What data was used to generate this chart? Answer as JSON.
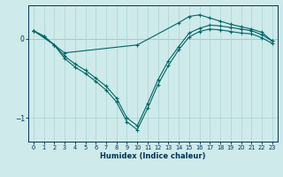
{
  "xlabel": "Humidex (Indice chaleur)",
  "x_main": [
    0,
    1,
    2,
    3,
    4,
    5,
    6,
    7,
    8,
    9,
    10,
    11,
    12,
    13,
    14,
    15,
    16,
    17,
    18,
    19,
    20,
    21,
    22,
    23
  ],
  "line1": [
    0.1,
    0.03,
    -0.08,
    -0.22,
    -0.32,
    -0.4,
    -0.5,
    -0.6,
    -0.75,
    -1.0,
    -1.1,
    -0.82,
    -0.52,
    -0.28,
    -0.1,
    0.07,
    0.13,
    0.17,
    0.16,
    0.14,
    0.12,
    0.1,
    0.05,
    -0.03
  ],
  "line2": [
    0.1,
    0.03,
    -0.08,
    -0.25,
    -0.36,
    -0.44,
    -0.54,
    -0.65,
    -0.8,
    -1.05,
    -1.15,
    -0.88,
    -0.58,
    -0.34,
    -0.14,
    0.02,
    0.09,
    0.12,
    0.11,
    0.09,
    0.07,
    0.06,
    0.01,
    -0.06
  ],
  "line3_x": [
    0,
    2,
    3,
    10,
    14,
    15,
    16,
    17,
    18,
    19,
    20,
    21,
    22,
    23
  ],
  "line3": [
    0.1,
    -0.08,
    -0.18,
    -0.08,
    0.2,
    0.28,
    0.3,
    0.26,
    0.22,
    0.18,
    0.15,
    0.12,
    0.08,
    -0.03
  ],
  "bg_color": "#ceeaea",
  "line_color": "#006666",
  "grid_color": "#aed4d4",
  "text_color": "#003355",
  "ylim": [
    -1.3,
    0.42
  ],
  "xlim": [
    -0.5,
    23.5
  ],
  "yticks": [
    -1,
    0
  ],
  "xticks": [
    0,
    1,
    2,
    3,
    4,
    5,
    6,
    7,
    8,
    9,
    10,
    11,
    12,
    13,
    14,
    15,
    16,
    17,
    18,
    19,
    20,
    21,
    22,
    23
  ]
}
